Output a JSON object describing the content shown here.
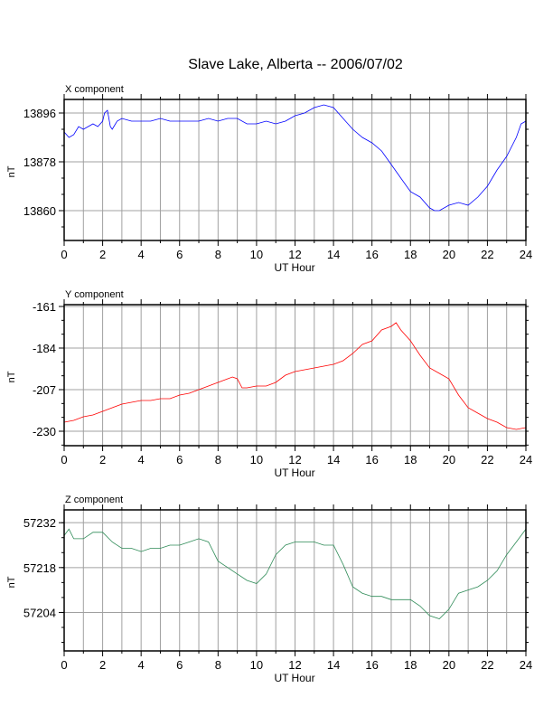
{
  "title": "Slave Lake, Alberta -- 2006/07/02",
  "chart_data": [
    {
      "type": "line",
      "title": "X component",
      "xlabel": "UT Hour",
      "ylabel": "nT",
      "xlim": [
        0,
        24
      ],
      "ylim": [
        13849,
        13901
      ],
      "xticks": [
        0,
        2,
        4,
        6,
        8,
        10,
        12,
        14,
        16,
        18,
        20,
        22,
        24
      ],
      "yticks": [
        13896,
        13878,
        13860
      ],
      "grid": true,
      "color": "#0000ff",
      "series": [
        {
          "x": [
            0,
            0.25,
            0.5,
            0.75,
            1,
            1.25,
            1.5,
            1.75,
            2,
            2.1,
            2.25,
            2.4,
            2.5,
            2.75,
            3,
            3.5,
            4,
            4.5,
            5,
            5.5,
            6,
            6.5,
            7,
            7.5,
            8,
            8.5,
            9,
            9.5,
            10,
            10.5,
            11,
            11.5,
            12,
            12.5,
            13,
            13.5,
            14,
            14.5,
            15,
            15.5,
            16,
            16.5,
            17,
            17.5,
            18,
            18.5,
            19,
            19.25,
            19.5,
            20,
            20.5,
            21,
            21.5,
            22,
            22.5,
            23,
            23.5,
            23.75,
            24
          ],
          "values": [
            13889,
            13887,
            13888,
            13891,
            13890,
            13891,
            13892,
            13891,
            13893,
            13896,
            13897,
            13891,
            13890,
            13893,
            13894,
            13893,
            13893,
            13893,
            13894,
            13893,
            13893,
            13893,
            13893,
            13894,
            13893,
            13894,
            13894,
            13892,
            13892,
            13893,
            13892,
            13893,
            13895,
            13896,
            13898,
            13899,
            13898,
            13894,
            13890,
            13887,
            13885,
            13882,
            13877,
            13872,
            13867,
            13865,
            13861,
            13860,
            13860,
            13862,
            13863,
            13862,
            13865,
            13869,
            13875,
            13880,
            13887,
            13892,
            13893
          ]
        }
      ]
    },
    {
      "type": "line",
      "title": "Y component",
      "xlabel": "UT Hour",
      "ylabel": "nT",
      "xlim": [
        0,
        24
      ],
      "ylim": [
        -238,
        -160
      ],
      "xticks": [
        0,
        2,
        4,
        6,
        8,
        10,
        12,
        14,
        16,
        18,
        20,
        22,
        24
      ],
      "yticks": [
        -161,
        -184,
        -207,
        -230
      ],
      "grid": true,
      "color": "#ff0000",
      "series": [
        {
          "x": [
            0,
            0.5,
            1,
            1.5,
            2,
            2.5,
            3,
            3.5,
            4,
            4.5,
            5,
            5.5,
            6,
            6.5,
            7,
            7.5,
            8,
            8.5,
            8.75,
            9,
            9.25,
            9.5,
            10,
            10.5,
            11,
            11.5,
            12,
            12.5,
            13,
            13.5,
            14,
            14.5,
            15,
            15.5,
            16,
            16.5,
            17,
            17.25,
            17.5,
            18,
            18.5,
            19,
            19.5,
            20,
            20.5,
            21,
            21.5,
            22,
            22.5,
            23,
            23.5,
            24
          ],
          "values": [
            -225,
            -224,
            -222,
            -221,
            -219,
            -217,
            -215,
            -214,
            -213,
            -213,
            -212,
            -212,
            -210,
            -209,
            -207,
            -205,
            -203,
            -201,
            -200,
            -201,
            -206,
            -206,
            -205,
            -205,
            -203,
            -199,
            -197,
            -196,
            -195,
            -194,
            -193,
            -191,
            -187,
            -182,
            -180,
            -174,
            -172,
            -170,
            -174,
            -180,
            -188,
            -195,
            -198,
            -201,
            -210,
            -217,
            -220,
            -223,
            -225,
            -228,
            -229,
            -228
          ]
        }
      ]
    },
    {
      "type": "line",
      "title": "Z component",
      "xlabel": "UT Hour",
      "ylabel": "nT",
      "xlim": [
        0,
        24
      ],
      "ylim": [
        57192,
        57236
      ],
      "xticks": [
        0,
        2,
        4,
        6,
        8,
        10,
        12,
        14,
        16,
        18,
        20,
        22,
        24
      ],
      "yticks": [
        57232,
        57218,
        57204
      ],
      "grid": true,
      "color": "#2e8b57",
      "series": [
        {
          "x": [
            0,
            0.25,
            0.5,
            1,
            1.5,
            2,
            2.5,
            3,
            3.5,
            4,
            4.5,
            5,
            5.5,
            6,
            6.5,
            7,
            7.5,
            8,
            8.5,
            9,
            9.5,
            10,
            10.5,
            11,
            11.5,
            12,
            12.5,
            13,
            13.5,
            14,
            14.5,
            15,
            15.5,
            16,
            16.5,
            17,
            17.5,
            18,
            18.5,
            19,
            19.5,
            20,
            20.5,
            21,
            21.5,
            22,
            22.5,
            23,
            23.5,
            24
          ],
          "values": [
            57228,
            57230,
            57227,
            57227,
            57229,
            57229,
            57226,
            57224,
            57224,
            57223,
            57224,
            57224,
            57225,
            57225,
            57226,
            57227,
            57226,
            57220,
            57218,
            57216,
            57214,
            57213,
            57216,
            57222,
            57225,
            57226,
            57226,
            57226,
            57225,
            57225,
            57219,
            57212,
            57210,
            57209,
            57209,
            57208,
            57208,
            57208,
            57206,
            57203,
            57202,
            57205,
            57210,
            57211,
            57212,
            57214,
            57217,
            57222,
            57226,
            57230
          ]
        }
      ]
    }
  ]
}
